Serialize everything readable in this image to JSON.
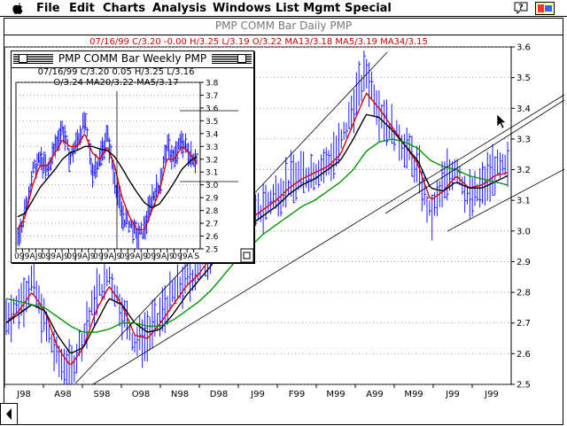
{
  "menubar": {
    "items": [
      "File",
      "Edit",
      "Charts",
      "Analysis",
      "Windows",
      "List Mgmt",
      "Special"
    ],
    "icons": [
      "apple-menu-icon",
      "balloon-help-icon",
      "application-menu-icon"
    ]
  },
  "main_window": {
    "title": "PMP COMM Bar Daily  PMP",
    "info_line": "07/16/99 C/3.20 -0.00 H/3.25 L/3.19 O/3.22 MA13/3.18 MA5/3.19 MA34/3.15"
  },
  "weekly_window": {
    "title": "PMP COMM Bar Weekly  PMP",
    "info_line_1": "07/16/99 C/3.20 0.05 H/3.25 L/3.16",
    "info_line_2": "O/3.24 MA20/3.22 MA5/3.17"
  },
  "colors": {
    "price_bars": "#1a1aff",
    "ma_short": "#e00000",
    "ma_mid": "#000000",
    "ma_long": "#009900",
    "info_text": "#d00000"
  },
  "chart_data": [
    {
      "type": "line",
      "chart": "daily",
      "ylim": [
        2.5,
        3.6
      ],
      "y_ticks": [
        "3.6",
        "3.5",
        "3.4",
        "3.3",
        "3.2",
        "3.1",
        "3.0",
        "2.9",
        "2.8",
        "2.7",
        "2.6",
        "2.5"
      ],
      "x_ticks": [
        "J98",
        "A98",
        "S98",
        "O98",
        "N98",
        "D98",
        "J99",
        "F99",
        "M99",
        "A99",
        "M99",
        "J99",
        "J99"
      ],
      "series": [
        {
          "values": [
            2.72,
            2.76,
            2.84,
            2.7,
            2.58,
            2.54,
            2.66,
            2.79,
            2.86,
            2.74,
            2.64,
            2.66,
            2.72,
            2.8,
            2.84,
            2.88,
            2.95,
            3.02,
            3.05,
            3.03,
            3.08,
            3.12,
            3.16,
            3.18,
            3.2,
            3.22,
            3.28,
            3.41,
            3.52,
            3.4,
            3.33,
            3.28,
            3.2,
            3.04,
            3.15,
            3.22,
            3.1,
            3.14,
            3.2,
            3.2
          ]
        },
        {
          "values": [
            2.7,
            2.74,
            2.8,
            2.74,
            2.62,
            2.56,
            2.62,
            2.74,
            2.82,
            2.76,
            2.66,
            2.65,
            2.7,
            2.76,
            2.82,
            2.86,
            2.92,
            2.98,
            3.03,
            3.04,
            3.07,
            3.1,
            3.14,
            3.17,
            3.19,
            3.21,
            3.25,
            3.35,
            3.45,
            3.4,
            3.34,
            3.28,
            3.22,
            3.1,
            3.13,
            3.18,
            3.14,
            3.15,
            3.18,
            3.19
          ]
        },
        {
          "values": [
            2.7,
            2.73,
            2.76,
            2.74,
            2.66,
            2.6,
            2.62,
            2.7,
            2.78,
            2.76,
            2.7,
            2.67,
            2.68,
            2.73,
            2.79,
            2.84,
            2.89,
            2.95,
            3.0,
            3.02,
            3.05,
            3.08,
            3.12,
            3.15,
            3.17,
            3.2,
            3.23,
            3.3,
            3.38,
            3.37,
            3.33,
            3.28,
            3.23,
            3.14,
            3.13,
            3.16,
            3.14,
            3.14,
            3.16,
            3.18
          ]
        },
        {
          "values": [
            2.78,
            2.77,
            2.76,
            2.75,
            2.72,
            2.69,
            2.67,
            2.67,
            2.68,
            2.7,
            2.7,
            2.69,
            2.69,
            2.71,
            2.74,
            2.77,
            2.81,
            2.86,
            2.91,
            2.95,
            2.99,
            3.02,
            3.05,
            3.08,
            3.1,
            3.13,
            3.16,
            3.2,
            3.26,
            3.29,
            3.3,
            3.29,
            3.27,
            3.23,
            3.21,
            3.2,
            3.18,
            3.17,
            3.16,
            3.15
          ]
        }
      ]
    },
    {
      "type": "line",
      "chart": "weekly",
      "ylim": [
        2.5,
        3.8
      ],
      "y_ticks": [
        "3.8",
        "3.7",
        "3.6",
        "3.5",
        "3.4",
        "3.3",
        "3.2",
        "3.1",
        "3.0",
        "2.9",
        "2.8",
        "2.7",
        "2.6",
        "2.5"
      ],
      "x_ticks": [
        "09",
        "J9",
        "A",
        "J9",
        "09",
        "J9",
        "A",
        "J9",
        "09",
        "J9",
        "A",
        "J9",
        "09",
        "J9",
        "A",
        "J9",
        "09",
        "J9",
        "A",
        "J9",
        "09",
        "J9",
        "A",
        "J9",
        "09",
        "J9",
        "A",
        "S"
      ],
      "series": [
        {
          "values": [
            2.6,
            2.8,
            3.1,
            3.2,
            3.1,
            3.3,
            3.45,
            3.2,
            3.35,
            3.5,
            3.1,
            3.2,
            3.4,
            3.05,
            2.75,
            2.7,
            2.6,
            2.65,
            2.9,
            3.0,
            3.3,
            3.2,
            3.35,
            3.25,
            3.2
          ]
        },
        {
          "values": [
            2.65,
            2.75,
            3.0,
            3.15,
            3.15,
            3.25,
            3.35,
            3.3,
            3.3,
            3.4,
            3.25,
            3.2,
            3.3,
            3.15,
            2.9,
            2.75,
            2.65,
            2.65,
            2.8,
            2.95,
            3.2,
            3.2,
            3.3,
            3.25,
            3.17
          ]
        },
        {
          "values": [
            2.75,
            2.78,
            2.88,
            2.98,
            3.05,
            3.12,
            3.2,
            3.25,
            3.27,
            3.3,
            3.3,
            3.28,
            3.27,
            3.22,
            3.13,
            3.03,
            2.94,
            2.86,
            2.82,
            2.85,
            2.93,
            3.02,
            3.12,
            3.18,
            3.22
          ]
        }
      ]
    }
  ]
}
